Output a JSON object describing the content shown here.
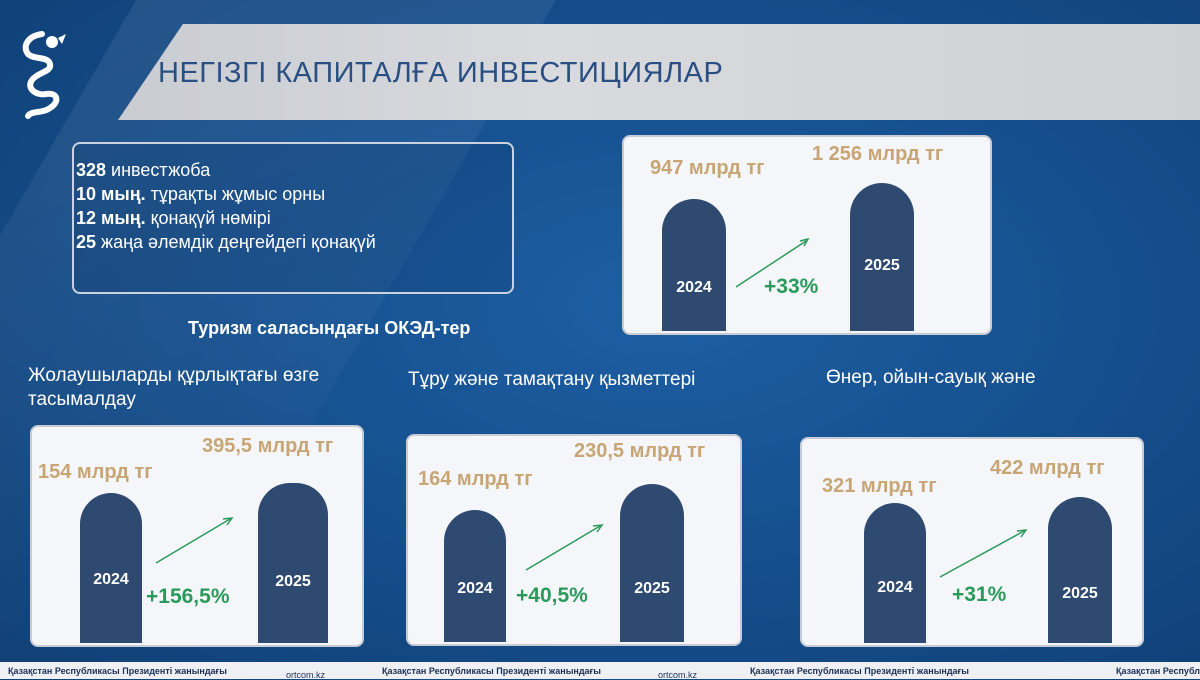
{
  "title": "НЕГІЗГІ КАПИТАЛҒА ИНВЕСТИЦИЯЛАР",
  "facts": [
    {
      "num": "328",
      "text": " инвестжоба"
    },
    {
      "num": "10 мың.",
      "text": " тұрақты жұмыс орны"
    },
    {
      "num": "12 мың.",
      "text": " қонақүй нөмірі"
    },
    {
      "num": "25",
      "text": " жаңа әлемдік деңгейдегі қонақүй"
    }
  ],
  "subtitle": "Туризм саласындағы ОКЭД-тер",
  "main_card": {
    "amount_2024": "947 млрд тг",
    "amount_2025": "1 256 млрд тг",
    "year1": "2024",
    "year2": "2025",
    "change": "+33%"
  },
  "categories": [
    {
      "name": "Жолаушыларды құрлықтағы өзге тасымалдау",
      "amount_2024": "154 млрд тг",
      "amount_2025": "395,5 млрд тг",
      "year1": "2024",
      "year2": "2025",
      "change": "+156,5%"
    },
    {
      "name": "Тұру және тамақтану қызметтері",
      "amount_2024": "164 млрд тг",
      "amount_2025": "230,5 млрд тг",
      "year1": "2024",
      "year2": "2025",
      "change": "+40,5%"
    },
    {
      "name": "Өнер, ойын-сауық және",
      "amount_2024": "321 млрд тг",
      "amount_2025": "422 млрд тг",
      "year1": "2024",
      "year2": "2025",
      "change": "+31%"
    }
  ],
  "footer": {
    "org": "Қазақстан Республикасы Президенті жанындағы",
    "site": "ortcom.kz"
  },
  "colors": {
    "bar": "#2e4a70",
    "amount": "#c8a574",
    "change": "#2a9a5a",
    "title": "#2a4f82"
  }
}
